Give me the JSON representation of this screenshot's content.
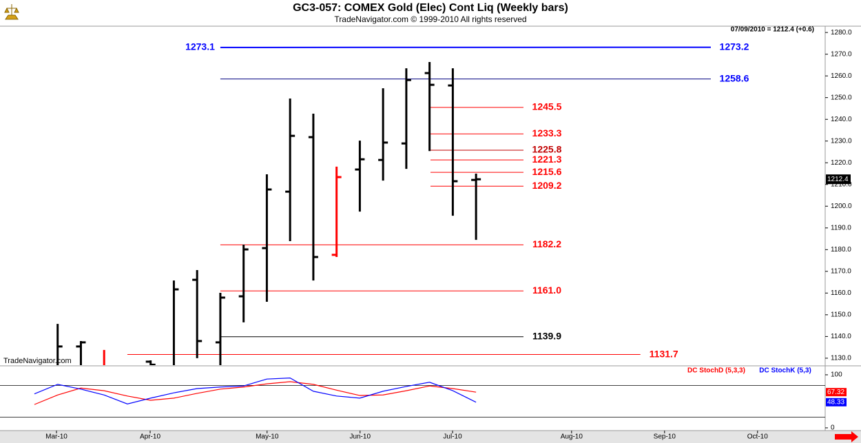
{
  "chart_data": [
    {
      "type": "ohlc",
      "title": "GC3-057:  COMEX Gold (Elec) Cont Liq  (Weekly bars)",
      "subtitle": "TradeNavigator.com © 1999-2010 All rights reserved",
      "header_text": "07/09/2010 = 1212.4 (+0.6)",
      "watermark": "TradeNavigator.com",
      "categories": [
        null,
        null,
        null,
        null,
        null,
        null,
        null,
        null,
        null,
        null,
        null,
        null,
        null,
        null,
        null,
        null,
        null,
        null,
        null,
        null
      ],
      "xlim": [
        -1.48,
        34.02
      ],
      "xticks": [
        {
          "value": 0.95,
          "label": "Mar-10"
        },
        {
          "value": 4.98,
          "label": "Apr-10"
        },
        {
          "value": 10.01,
          "label": "May-10"
        },
        {
          "value": 14.01,
          "label": "Jun-10"
        },
        {
          "value": 17.99,
          "label": "Jul-10"
        },
        {
          "value": 23.11,
          "label": "Aug-10"
        },
        {
          "value": 27.11,
          "label": "Sep-10"
        },
        {
          "value": 31.11,
          "label": "Oct-10"
        }
      ],
      "open": [
        null,
        1125,
        1135.4,
        1125,
        null,
        1128.4,
        1125,
        1166.1,
        1137.3,
        1158.5,
        1180.7,
        1206.7,
        1231.8,
        1177.6,
        1216.9,
        1221.3,
        1228.9,
        1261.3,
        1255.6,
        1212.1
      ],
      "high": [
        null,
        1145.8,
        1137.9,
        1133.8,
        null,
        1129,
        1165.8,
        1170.6,
        1160.1,
        1182.3,
        1214.7,
        1249.6,
        1242.6,
        1218.2,
        1230.2,
        1254.3,
        1263.5,
        1266.4,
        1263.5,
        1215
      ],
      "low": [
        null,
        1120,
        1120,
        1120,
        null,
        1120,
        1120,
        1130,
        1125,
        1146.5,
        1156,
        1183.9,
        1165.8,
        1176.6,
        1197.5,
        1211.8,
        1217.2,
        1225.4,
        1195.6,
        1184.5
      ],
      "close": [
        null,
        1135.4,
        1137.3,
        1125,
        null,
        1127,
        1161.7,
        1137.9,
        1157.9,
        1180.1,
        1207.7,
        1232.4,
        1176.6,
        1213.4,
        1221.6,
        1229.3,
        1258.1,
        1255.9,
        1211.5,
        1212.4
      ],
      "bar_colors": [
        "#000000",
        "#000000",
        "#000000",
        "#ff0000",
        "#000000",
        "#000000",
        "#000000",
        "#000000",
        "#000000",
        "#000000",
        "#000000",
        "#000000",
        "#000000",
        "#ff0000",
        "#000000",
        "#000000",
        "#000000",
        "#000000",
        "#000000",
        "#000000"
      ],
      "ylim": [
        1126.8,
        1282.9
      ],
      "yticks": [
        {
          "value": 1130,
          "label": "1130.0"
        },
        {
          "value": 1140,
          "label": "1140.0"
        },
        {
          "value": 1150,
          "label": "1150.0"
        },
        {
          "value": 1160,
          "label": "1160.0"
        },
        {
          "value": 1170,
          "label": "1170.0"
        },
        {
          "value": 1180,
          "label": "1180.0"
        },
        {
          "value": 1190,
          "label": "1190.0"
        },
        {
          "value": 1200,
          "label": "1200.0"
        },
        {
          "value": 1210,
          "label": "1210.0"
        },
        {
          "value": 1220,
          "label": "1220.0"
        },
        {
          "value": 1230,
          "label": "1230.0"
        },
        {
          "value": 1240,
          "label": "1240.0"
        },
        {
          "value": 1250,
          "label": "1250.0"
        },
        {
          "value": 1260,
          "label": "1260.0"
        },
        {
          "value": 1270,
          "label": "1270.0"
        },
        {
          "value": 1280,
          "label": "1280.0"
        }
      ],
      "last_value": 1212.4,
      "lines": [
        {
          "start_value": 1273.1,
          "value": 1273.2,
          "from": 8,
          "to": 29.1,
          "color": "#0000ff",
          "label_color": "#0000ff",
          "width": 2
        },
        {
          "value": 1258.6,
          "from": 8,
          "to": 29.1,
          "color": "#000080",
          "label_color": "#0000ff",
          "width": 1
        },
        {
          "value": 1245.5,
          "from": 17.04,
          "to": 21.04,
          "color": "#ff0000",
          "label_color": "#ff0000",
          "width": 1
        },
        {
          "value": 1233.3,
          "from": 17.04,
          "to": 21.04,
          "color": "#ff0000",
          "label_color": "#ff0000",
          "width": 1
        },
        {
          "value": 1225.8,
          "from": 17.04,
          "to": 21.04,
          "color": "#c00000",
          "label_color": "#c00000",
          "width": 1
        },
        {
          "value": 1221.3,
          "from": 17.04,
          "to": 21.04,
          "color": "#ff0000",
          "label_color": "#ff0000",
          "width": 1
        },
        {
          "value": 1215.6,
          "from": 17.04,
          "to": 21.04,
          "color": "#ff0000",
          "label_color": "#ff0000",
          "width": 1
        },
        {
          "value": 1209.2,
          "from": 17.04,
          "to": 21.04,
          "color": "#ff0000",
          "label_color": "#ff0000",
          "width": 1
        },
        {
          "value": 1182.2,
          "from": 8,
          "to": 21.04,
          "color": "#ff0000",
          "label_color": "#ff0000",
          "width": 1
        },
        {
          "value": 1161.0,
          "label": "1161.0",
          "from": 8,
          "to": 21.04,
          "color": "#ff0000",
          "label_color": "#ff0000",
          "width": 1
        },
        {
          "value": 1139.9,
          "from": 8,
          "to": 21.04,
          "color": "#000000",
          "label_color": "#000000",
          "width": 1
        },
        {
          "value": 1131.7,
          "from": 4,
          "to": 26.07,
          "color": "#ff0000",
          "label_color": "#ff0000",
          "width": 1
        }
      ]
    },
    {
      "type": "line",
      "series": [
        {
          "name": "DC StochD (5,3,3)",
          "color": "#ff0000",
          "values": [
            44,
            62,
            75,
            70,
            60,
            52,
            56,
            65,
            73,
            77,
            83,
            87,
            82,
            71,
            61,
            62,
            70,
            79,
            74,
            67.32
          ]
        },
        {
          "name": "DC StochK (5,3)",
          "color": "#0000ff",
          "values": [
            64,
            82,
            73,
            62,
            45,
            56,
            66,
            74,
            77,
            79,
            92,
            94,
            69,
            60,
            56,
            69,
            78,
            86,
            70,
            48.33
          ]
        }
      ],
      "ylim": [
        -5.2,
        114.3
      ],
      "yticks": [
        0,
        100
      ],
      "reference_lines": [
        20,
        80
      ]
    }
  ]
}
